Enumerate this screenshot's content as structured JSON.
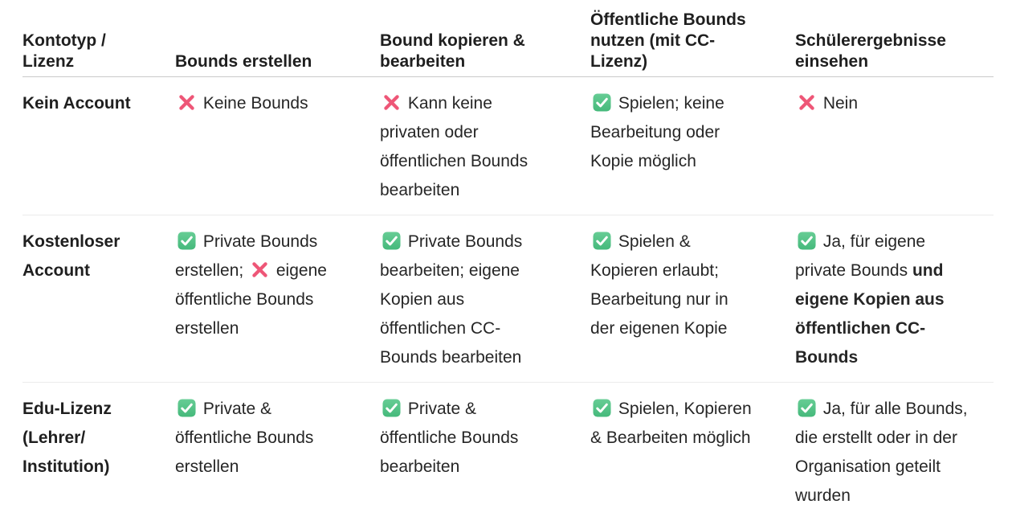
{
  "colors": {
    "header_text": "#1f1f1f",
    "label_text": "#1f1f1f",
    "body_text": "#262626",
    "header_border": "#c9c9c9",
    "row_border": "#ebebeb",
    "check_green_top": "#67cd95",
    "check_green_bottom": "#45b97b",
    "check_mark_white": "#ffffff",
    "cross_pink": "#ee5677"
  },
  "table": {
    "columns": [
      {
        "id": "kontotyp",
        "label": "Kontotyp /\nLizenz"
      },
      {
        "id": "bounds-erstellen",
        "label": "Bounds erstellen"
      },
      {
        "id": "bound-kopieren-bearbeiten",
        "label": "Bound kopieren &\nbearbeiten"
      },
      {
        "id": "oeffentliche-bounds-nutzen",
        "label": "Öffentliche Bounds\nnutzen (mit CC-\nLizenz)"
      },
      {
        "id": "schuelerergebnisse-einsehen",
        "label": "Schülerergebnisse\neinsehen"
      }
    ],
    "rows": [
      {
        "label": "Kein Account",
        "cells": [
          {
            "segments": [
              {
                "icon": "cross"
              },
              {
                "text": " Keine Bounds"
              }
            ]
          },
          {
            "segments": [
              {
                "icon": "cross"
              },
              {
                "text": " Kann keine privaten oder öffentlichen Bounds bearbeiten"
              }
            ]
          },
          {
            "segments": [
              {
                "icon": "check"
              },
              {
                "text": " Spielen; keine Bearbeitung oder Kopie möglich"
              }
            ]
          },
          {
            "segments": [
              {
                "icon": "cross"
              },
              {
                "text": " Nein"
              }
            ]
          }
        ]
      },
      {
        "label": "Kostenloser Account",
        "cells": [
          {
            "segments": [
              {
                "icon": "check"
              },
              {
                "text": " Private Bounds erstellen; "
              },
              {
                "icon": "cross"
              },
              {
                "text": " eigene öffentliche Bounds erstellen"
              }
            ]
          },
          {
            "segments": [
              {
                "icon": "check"
              },
              {
                "text": " Private Bounds bearbeiten; eigene Kopien aus öffentlichen CC-Bounds bearbeiten"
              }
            ]
          },
          {
            "segments": [
              {
                "icon": "check"
              },
              {
                "text": " Spielen & Kopieren erlaubt; Bearbeitung nur in der eigenen Kopie"
              }
            ]
          },
          {
            "segments": [
              {
                "icon": "check"
              },
              {
                "text": " Ja, für eigene private Bounds "
              },
              {
                "text": "und eigene Kopien aus öffentlichen CC-Bounds",
                "bold": true
              }
            ]
          }
        ]
      },
      {
        "label": "Edu-Lizenz (Lehrer/ Institution)",
        "cells": [
          {
            "segments": [
              {
                "icon": "check"
              },
              {
                "text": " Private & öffentliche Bounds erstellen"
              }
            ]
          },
          {
            "segments": [
              {
                "icon": "check"
              },
              {
                "text": " Private & öffentliche Bounds bearbeiten"
              }
            ]
          },
          {
            "segments": [
              {
                "icon": "check"
              },
              {
                "text": " Spielen, Kopieren & Bearbeiten möglich"
              }
            ]
          },
          {
            "segments": [
              {
                "icon": "check"
              },
              {
                "text": " Ja, für alle Bounds, die erstellt oder in der Organisation geteilt wurden"
              }
            ]
          }
        ]
      }
    ]
  }
}
